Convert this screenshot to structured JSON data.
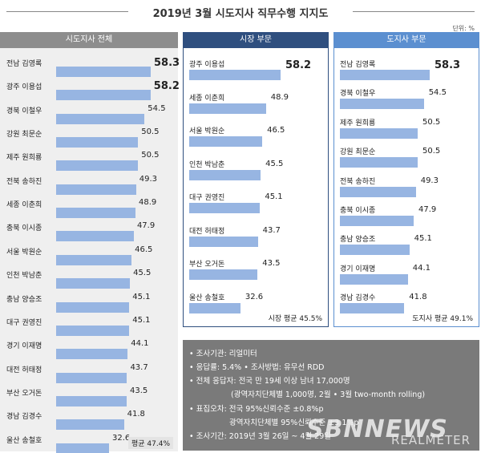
{
  "header": {
    "title": "2019년 3월 시도지사 직무수행 지지도",
    "unit": "단위: %"
  },
  "colors": {
    "bar": "#97b5e2",
    "left_header": "#8d8d8d",
    "mid_header": "#2f4f7f",
    "right_header": "#5b8fd0",
    "left_panel_bg": "#efefef",
    "notes_bg": "#7a7a7a"
  },
  "chart_data": [
    {
      "type": "bar",
      "title": "시도지사 전체",
      "categories": [
        "전남 김영록",
        "광주 이용섭",
        "경북 이철우",
        "강원 최문순",
        "제주 원희룡",
        "전북 송하진",
        "세종 이춘희",
        "충북 이시종",
        "서울 박원순",
        "인천 박남춘",
        "충남 양승조",
        "대구 권영진",
        "경기 이재명",
        "대전 허태정",
        "부산 오거돈",
        "경남 김경수",
        "울산 송철호"
      ],
      "values": [
        58.3,
        58.2,
        54.5,
        50.5,
        50.5,
        49.3,
        48.9,
        47.9,
        46.5,
        45.5,
        45.1,
        45.1,
        44.1,
        43.7,
        43.5,
        41.8,
        32.6
      ],
      "average_label": "평균 47.4%"
    },
    {
      "type": "bar",
      "title": "시장 부문",
      "categories": [
        "광주 이용섭",
        "세종 이춘희",
        "서울 박원순",
        "인천 박남춘",
        "대구 권영진",
        "대전 허태정",
        "부산 오거돈",
        "울산 송철호"
      ],
      "values": [
        58.2,
        48.9,
        46.5,
        45.5,
        45.1,
        43.7,
        43.5,
        32.6
      ],
      "average_label": "시장 평균 45.5%"
    },
    {
      "type": "bar",
      "title": "도지사 부문",
      "categories": [
        "전남 김영록",
        "경북 이철우",
        "제주 원희룡",
        "강원 최문순",
        "전북 송하진",
        "충북 이시종",
        "충남 양승조",
        "경기 이재명",
        "경남 김경수"
      ],
      "values": [
        58.3,
        54.5,
        50.5,
        50.5,
        49.3,
        47.9,
        45.1,
        44.1,
        41.8
      ],
      "average_label": "도지사 평균 49.1%"
    }
  ],
  "notes": {
    "lines": [
      "• 조사기관: 리얼미터",
      "• 응답률: 5.4% • 조사방법: 유무선 RDD",
      "• 전체 응답자: 전국 만 19세 이상 남녀 17,000명",
      "(광역자치단체별 1,000명, 2월 • 3월 two-month rolling)",
      "• 표집오차: 전국 95%신뢰수준 ±0.8%p",
      "광역자치단체별 95%신뢰수준 ±3.1%p",
      "• 조사기간: 2019년 3월 26일 ~ 4월 29일"
    ]
  },
  "watermarks": {
    "sbn": "SBNNEWS",
    "realmeter": "REALMETER"
  }
}
